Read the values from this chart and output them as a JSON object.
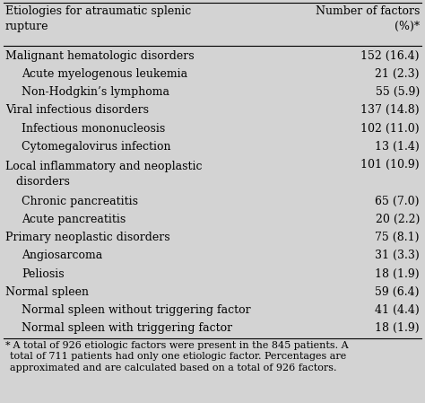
{
  "header_col1": "Etiologies for atraumatic splenic\nrupture",
  "header_col2": "Number of factors\n(%)*",
  "rows": [
    {
      "label": "Malignant hematologic disorders",
      "value": "152 (16.4)",
      "bold": false,
      "indent": 0
    },
    {
      "label": "Acute myelogenous leukemia",
      "value": "21 (2.3)",
      "bold": false,
      "indent": 1
    },
    {
      "label": "Non-Hodgkin’s lymphoma",
      "value": "55 (5.9)",
      "bold": false,
      "indent": 1
    },
    {
      "label": "Viral infectious disorders",
      "value": "137 (14.8)",
      "bold": false,
      "indent": 0
    },
    {
      "label": "Infectious mononucleosis",
      "value": "102 (11.0)",
      "bold": false,
      "indent": 1
    },
    {
      "label": "Cytomegalovirus infection",
      "value": "13 (1.4)",
      "bold": false,
      "indent": 1
    },
    {
      "label": "Local inflammatory and neoplastic\n   disorders",
      "value": "101 (10.9)",
      "bold": false,
      "indent": 0,
      "value_top": true
    },
    {
      "label": "Chronic pancreatitis",
      "value": "65 (7.0)",
      "bold": false,
      "indent": 1
    },
    {
      "label": "Acute pancreatitis",
      "value": "20 (2.2)",
      "bold": false,
      "indent": 1
    },
    {
      "label": "Primary neoplastic disorders",
      "value": "75 (8.1)",
      "bold": false,
      "indent": 0
    },
    {
      "label": "Angiosarcoma",
      "value": "31 (3.3)",
      "bold": false,
      "indent": 1
    },
    {
      "label": "Peliosis",
      "value": "18 (1.9)",
      "bold": false,
      "indent": 1
    },
    {
      "label": "Normal spleen",
      "value": "59 (6.4)",
      "bold": false,
      "indent": 0
    },
    {
      "label": "Normal spleen without triggering factor",
      "value": "41 (4.4)",
      "bold": false,
      "indent": 1
    },
    {
      "label": "Normal spleen with triggering factor",
      "value": "18 (1.9)",
      "bold": false,
      "indent": 1
    }
  ],
  "footnote_star": "*",
  "footnote_text": " A total of 926 etiologic factors were present in the 845 patients. A\ntotal of 711 patients had only one etiologic factor. Percentages are\napproximated and are calculated based on a total of 926 factors.",
  "bg_color": "#d3d3d3",
  "text_color": "#000000",
  "font_size": 9.0,
  "header_font_size": 9.0,
  "footnote_font_size": 8.0,
  "indent_size": 0.035
}
